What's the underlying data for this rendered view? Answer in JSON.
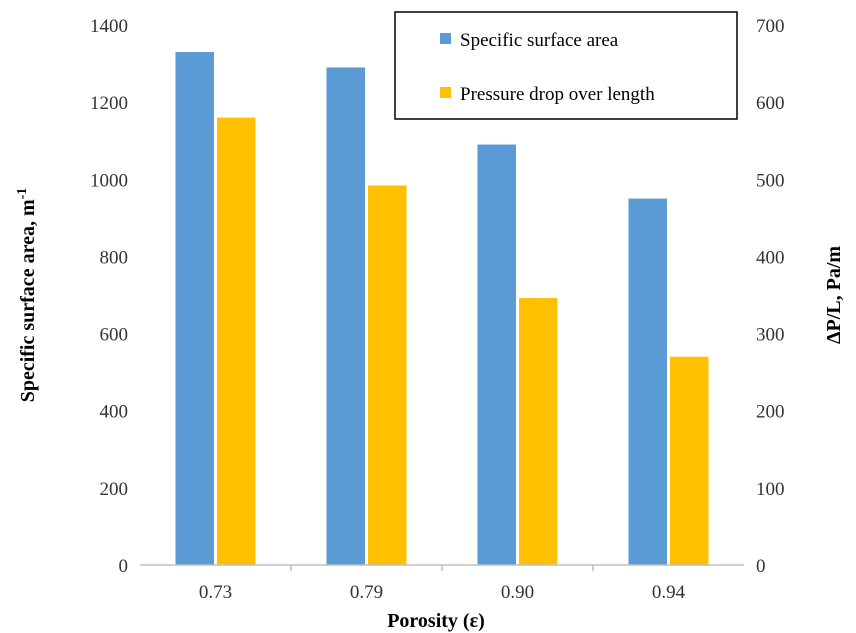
{
  "chart_data": {
    "type": "bar",
    "xlabel": "Porosity (ε)",
    "ylabel": "Specific surface area, m",
    "ylabel_sup": "-1",
    "y2label": "ΔP/L, Pa/m",
    "categories": [
      "0.73",
      "0.79",
      "0.90",
      "0.94"
    ],
    "ylim": [
      0,
      1400
    ],
    "y2lim": [
      0,
      700
    ],
    "yticks": [
      "0",
      "200",
      "400",
      "600",
      "800",
      "1000",
      "1200",
      "1400"
    ],
    "y2ticks": [
      "0",
      "100",
      "200",
      "300",
      "400",
      "500",
      "600",
      "700"
    ],
    "grid": false,
    "legend_position": "top-right",
    "series": [
      {
        "name": "Specific surface area",
        "axis": "left",
        "color": "#5B9BD5",
        "values": [
          1330,
          1290,
          1090,
          950
        ]
      },
      {
        "name": "Pressure drop over length",
        "axis": "right",
        "color": "#FFC000",
        "values": [
          580,
          492,
          346,
          270
        ]
      }
    ]
  }
}
